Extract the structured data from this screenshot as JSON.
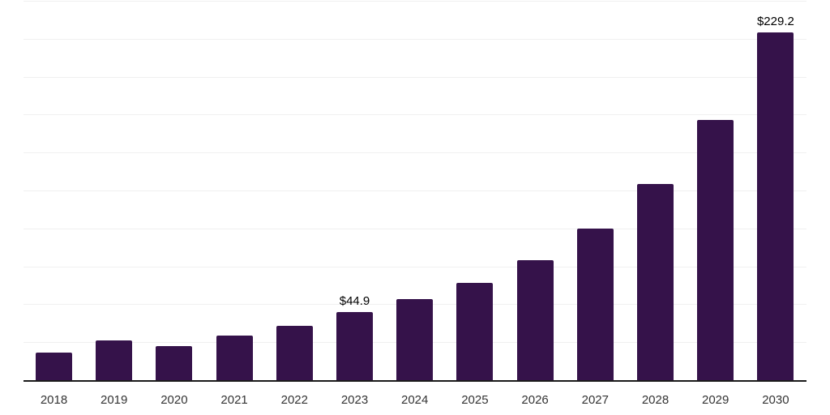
{
  "chart_data": {
    "type": "bar",
    "title": "",
    "xlabel": "",
    "ylabel": "",
    "categories": [
      "2018",
      "2019",
      "2020",
      "2021",
      "2022",
      "2023",
      "2024",
      "2025",
      "2026",
      "2027",
      "2028",
      "2029",
      "2030"
    ],
    "values": [
      18.0,
      26.0,
      22.6,
      29.2,
      35.6,
      44.9,
      53.4,
      64.1,
      79.1,
      99.9,
      129.3,
      171.5,
      229.2
    ],
    "data_labels": [
      "",
      "",
      "",
      "",
      "",
      "$44.9",
      "",
      "",
      "",
      "",
      "",
      "",
      "$229.2"
    ],
    "ylim": [
      0,
      250
    ],
    "gridline_step": 25,
    "grid": "horizontal-only",
    "legend": "none",
    "colors": {
      "bar": "#35124A",
      "axis": "#1A1A1A",
      "gridline": "#F0F0F0",
      "tick_label": "#333333",
      "value_label": "#000000",
      "background": "#FFFFFF"
    }
  }
}
